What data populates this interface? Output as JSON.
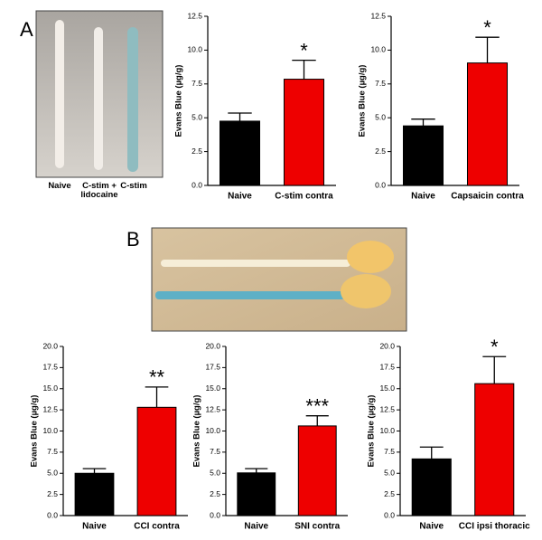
{
  "panel_labels": [
    "A",
    "B"
  ],
  "photo_labels": [
    "Naive",
    "C-stim + lidocaine",
    "C-stim"
  ],
  "chart_data": [
    {
      "type": "bar",
      "y_label": "Evans Blue (µg/g)",
      "categories": [
        "Naive",
        "C-stim contra"
      ],
      "values": [
        4.75,
        7.85
      ],
      "errors": [
        0.6,
        1.4
      ],
      "colors": [
        "#000000",
        "#ee0000"
      ],
      "annotation": "*",
      "ylim": [
        0,
        12.5
      ],
      "yticks": [
        {
          "value": 0,
          "label": "0.0"
        },
        2.5,
        {
          "value": 5,
          "label": "5.0"
        },
        7.5,
        {
          "value": 10,
          "label": "10.0"
        },
        12.5
      ]
    },
    {
      "type": "bar",
      "y_label": "Evans Blue (µg/g)",
      "categories": [
        "Naive",
        "Capsaicin contra"
      ],
      "values": [
        4.4,
        9.05
      ],
      "errors": [
        0.5,
        1.9
      ],
      "colors": [
        "#000000",
        "#ee0000"
      ],
      "annotation": "*",
      "ylim": [
        0,
        12.5
      ],
      "yticks": [
        {
          "value": 0,
          "label": "0.0"
        },
        2.5,
        {
          "value": 5,
          "label": "5.0"
        },
        7.5,
        {
          "value": 10,
          "label": "10.0"
        },
        12.5
      ]
    },
    {
      "type": "bar",
      "y_label": "Evans Blue (µg/g)",
      "categories": [
        "Naive",
        "CCI contra"
      ],
      "values": [
        5.0,
        12.8
      ],
      "errors": [
        0.55,
        2.4
      ],
      "colors": [
        "#000000",
        "#ee0000"
      ],
      "annotation": "**",
      "ylim": [
        0,
        20
      ],
      "yticks": [
        {
          "value": 0,
          "label": "0.0"
        },
        2.5,
        {
          "value": 5,
          "label": "5.0"
        },
        7.5,
        {
          "value": 10,
          "label": "10.0"
        },
        12.5,
        {
          "value": 15,
          "label": "15.0"
        },
        17.5,
        {
          "value": 20,
          "label": "20.0"
        }
      ]
    },
    {
      "type": "bar",
      "y_label": "Evans Blue (µg/g)",
      "categories": [
        "Naive",
        "SNI contra"
      ],
      "values": [
        5.05,
        10.6
      ],
      "errors": [
        0.5,
        1.2
      ],
      "colors": [
        "#000000",
        "#ee0000"
      ],
      "annotation": "***",
      "ylim": [
        0,
        20
      ],
      "yticks": [
        {
          "value": 0,
          "label": "0.0"
        },
        2.5,
        {
          "value": 5,
          "label": "5.0"
        },
        7.5,
        {
          "value": 10,
          "label": "10.0"
        },
        12.5,
        {
          "value": 15,
          "label": "15.0"
        },
        17.5,
        {
          "value": 20,
          "label": "20.0"
        }
      ]
    },
    {
      "type": "bar",
      "y_label": "Evans Blue (µg/g)",
      "categories": [
        "Naive",
        "CCI ipsi thoracic"
      ],
      "values": [
        6.7,
        15.6
      ],
      "errors": [
        1.4,
        3.2
      ],
      "colors": [
        "#000000",
        "#ee0000"
      ],
      "annotation": "*",
      "ylim": [
        0,
        20
      ],
      "yticks": [
        {
          "value": 0,
          "label": "0.0"
        },
        2.5,
        {
          "value": 5,
          "label": "5.0"
        },
        7.5,
        {
          "value": 10,
          "label": "10.0"
        },
        12.5,
        {
          "value": 15,
          "label": "15.0"
        },
        17.5,
        {
          "value": 20,
          "label": "20.0"
        }
      ]
    }
  ]
}
